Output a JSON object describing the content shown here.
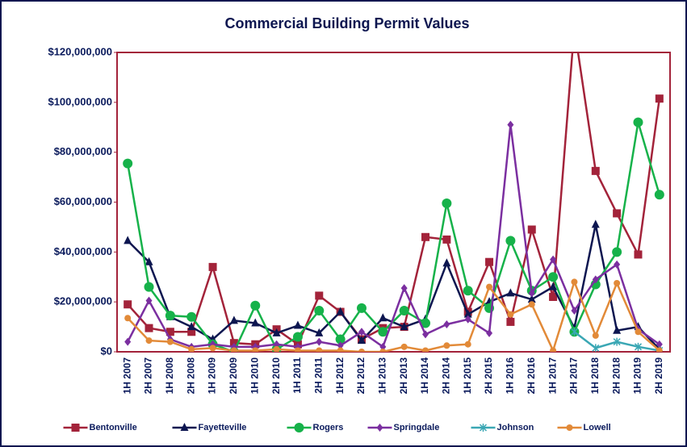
{
  "chart_data": {
    "type": "line",
    "title": "Commercial Building Permit Values",
    "categories": [
      "1H 2007",
      "2H 2007",
      "1H 2008",
      "2H 2008",
      "1H 2009",
      "2H 2009",
      "1H 2010",
      "2H 2010",
      "1H 2011",
      "2H 2011",
      "1H 2012",
      "2H 2012",
      "1H 2013",
      "2H 2013",
      "1H 2014",
      "2H 2014",
      "1H 2015",
      "2H 2015",
      "1H 2016",
      "2H 2016",
      "1H 2017",
      "2H 2017",
      "1H 2018",
      "2H 2018",
      "1H 2019",
      "2H 2019"
    ],
    "ylim": [
      0,
      120000000
    ],
    "yticks": [
      {
        "value": 0,
        "label": "$0"
      },
      {
        "value": 20000000,
        "label": "$20,000,000"
      },
      {
        "value": 40000000,
        "label": "$40,000,000"
      },
      {
        "value": 60000000,
        "label": "$60,000,000"
      },
      {
        "value": 80000000,
        "label": "$80,000,000"
      },
      {
        "value": 100000000,
        "label": "$100,000,000"
      },
      {
        "value": 120000000,
        "label": "$120,000,000"
      }
    ],
    "grid": false,
    "legend": "bottom",
    "series": [
      {
        "name": "Bentonville",
        "color": "#a3233a",
        "marker": "square",
        "values": [
          19000000,
          9500000,
          8000000,
          8000000,
          34000000,
          3500000,
          3000000,
          9000000,
          3000000,
          22500000,
          16000000,
          5000000,
          9500000,
          10000000,
          46000000,
          45000000,
          16000000,
          36000000,
          12000000,
          49000000,
          22000000,
          130000000,
          72500000,
          55500000,
          39000000,
          101500000
        ]
      },
      {
        "name": "Fayetteville",
        "color": "#0d1650",
        "marker": "triangle",
        "values": [
          44500000,
          36000000,
          14000000,
          10000000,
          5000000,
          12500000,
          11500000,
          7500000,
          10500000,
          7500000,
          16000000,
          4500000,
          13500000,
          10000000,
          13000000,
          35500000,
          15000000,
          20000000,
          23500000,
          21000000,
          26000000,
          9500000,
          51000000,
          8500000,
          10000000,
          1000000
        ]
      },
      {
        "name": "Rogers",
        "color": "#16b24a",
        "marker": "circle",
        "values": [
          75500000,
          26000000,
          14500000,
          14000000,
          3000000,
          0,
          18500000,
          1000000,
          6000000,
          16500000,
          5000000,
          17500000,
          8000000,
          16500000,
          11500000,
          59500000,
          24500000,
          17500000,
          44500000,
          24500000,
          30000000,
          8000000,
          27000000,
          40000000,
          92000000,
          63000000
        ]
      },
      {
        "name": "Springdale",
        "color": "#7b2fa0",
        "marker": "diamond",
        "values": [
          4000000,
          20500000,
          5000000,
          2000000,
          3000000,
          2000000,
          2000000,
          3000000,
          2000000,
          4000000,
          2500000,
          8000000,
          2000000,
          25500000,
          7000000,
          11000000,
          13000000,
          7500000,
          91000000,
          23500000,
          37000000,
          16500000,
          29000000,
          35000000,
          9000000,
          3000000
        ]
      },
      {
        "name": "Johnson",
        "color": "#3aa7b4",
        "marker": "star",
        "values": [
          null,
          null,
          null,
          null,
          null,
          null,
          null,
          null,
          null,
          null,
          null,
          null,
          null,
          null,
          null,
          null,
          null,
          null,
          null,
          null,
          null,
          8000000,
          1500000,
          4000000,
          2000000,
          500000
        ]
      },
      {
        "name": "Lowell",
        "color": "#e28a38",
        "marker": "dot",
        "values": [
          13500000,
          4500000,
          4000000,
          1000000,
          1500000,
          500000,
          500000,
          1000000,
          500000,
          500000,
          500000,
          0,
          0,
          2000000,
          500000,
          2500000,
          3000000,
          26000000,
          15000000,
          19000000,
          500000,
          28000000,
          6500000,
          27500000,
          8000000,
          500000
        ]
      }
    ]
  }
}
